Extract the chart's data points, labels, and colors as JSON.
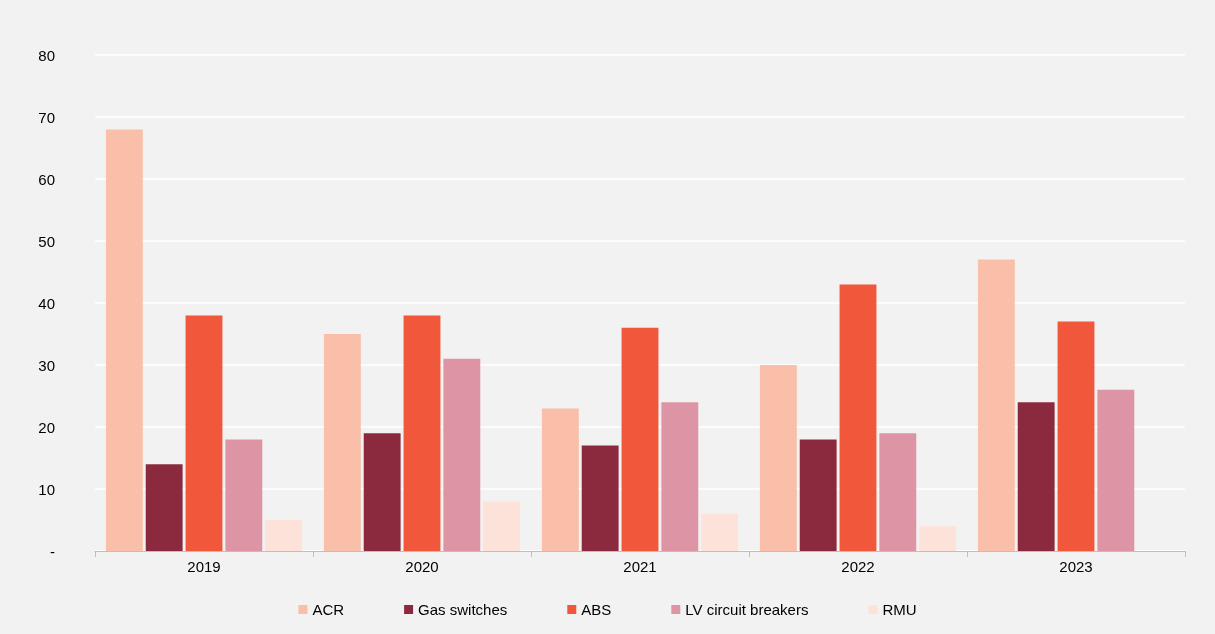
{
  "chart_data": {
    "type": "bar",
    "categories": [
      "2019",
      "2020",
      "2021",
      "2022",
      "2023"
    ],
    "series": [
      {
        "name": "ACR",
        "color": "#f9bfa8",
        "values": [
          68,
          35,
          23,
          30,
          47
        ]
      },
      {
        "name": "Gas switches",
        "color": "#8b2a3e",
        "values": [
          14,
          19,
          17,
          18,
          24
        ]
      },
      {
        "name": "ABS",
        "color": "#f0573b",
        "values": [
          38,
          38,
          36,
          43,
          37
        ]
      },
      {
        "name": "LV circuit breakers",
        "color": "#dd95a6",
        "values": [
          18,
          31,
          24,
          19,
          26
        ]
      },
      {
        "name": "RMU",
        "color": "#fde2d9",
        "values": [
          5,
          8,
          6,
          4,
          null
        ]
      }
    ],
    "ylim": [
      0,
      80
    ],
    "yticks": [
      {
        "value": 0,
        "label": "-"
      },
      10,
      20,
      30,
      40,
      50,
      60,
      70,
      80
    ],
    "grid": "y",
    "legend": "bottom"
  }
}
